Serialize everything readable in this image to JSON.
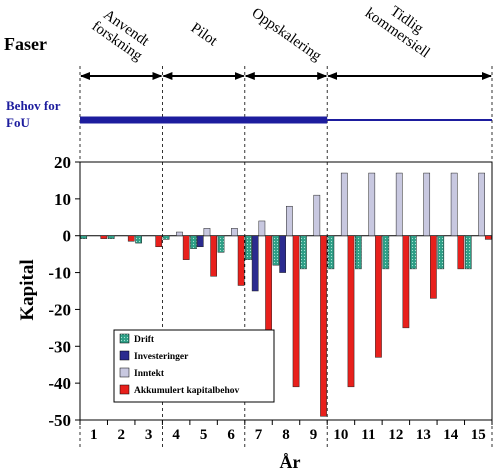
{
  "phases_title": "Faser",
  "phases": [
    {
      "label_lines": [
        "Anvendt",
        "forskning"
      ],
      "x_start": 0.5,
      "x_end": 3.5
    },
    {
      "label_lines": [
        "Pilot"
      ],
      "x_start": 3.5,
      "x_end": 6.5
    },
    {
      "label_lines": [
        "Oppskalering"
      ],
      "x_start": 6.5,
      "x_end": 9.5
    },
    {
      "label_lines": [
        "Tidlig",
        "kommersiell"
      ],
      "x_start": 9.5,
      "x_end": 15.5
    }
  ],
  "fou": {
    "label_lines": [
      "Behov for",
      "FoU"
    ],
    "segments": [
      {
        "x_start": 0.5,
        "x_end": 9.5,
        "level": "high"
      },
      {
        "x_start": 9.5,
        "x_end": 15.5,
        "level": "low"
      }
    ],
    "color": "#1d1d9e"
  },
  "chart_data": {
    "type": "bar",
    "title": "",
    "xlabel": "År",
    "ylabel": "Kapital",
    "categories": [
      "1",
      "2",
      "3",
      "4",
      "5",
      "6",
      "7",
      "8",
      "9",
      "10",
      "11",
      "12",
      "13",
      "14",
      "15"
    ],
    "ylim": [
      -50,
      20
    ],
    "yticks": [
      20,
      10,
      0,
      -10,
      -20,
      -30,
      -40,
      -50
    ],
    "series": [
      {
        "name": "Drift",
        "color": "#2e9e86",
        "values": [
          -0.8,
          -0.8,
          -2,
          -1,
          -3.5,
          -4.5,
          -6.5,
          -8,
          -9,
          -9,
          -9,
          -9,
          -9,
          -9,
          -9
        ]
      },
      {
        "name": "Investeringer",
        "color": "#2b2b8f",
        "values": [
          0,
          0,
          0,
          0,
          -3,
          0,
          -15,
          -10,
          0,
          0,
          0,
          0,
          0,
          0,
          0
        ]
      },
      {
        "name": "Inntekt",
        "color": "#c8c8e0",
        "values": [
          0,
          0,
          0,
          1,
          2,
          2,
          4,
          8,
          11,
          17,
          17,
          17,
          17,
          17,
          17
        ]
      },
      {
        "name": "Akkumulert kapitalbehov",
        "color": "#e8201c",
        "values": [
          -0.8,
          -1.5,
          -3,
          -6.5,
          -11,
          -13.5,
          -31,
          -41,
          -49,
          -41,
          -33,
          -25,
          -17,
          -9,
          -1
        ]
      }
    ]
  }
}
